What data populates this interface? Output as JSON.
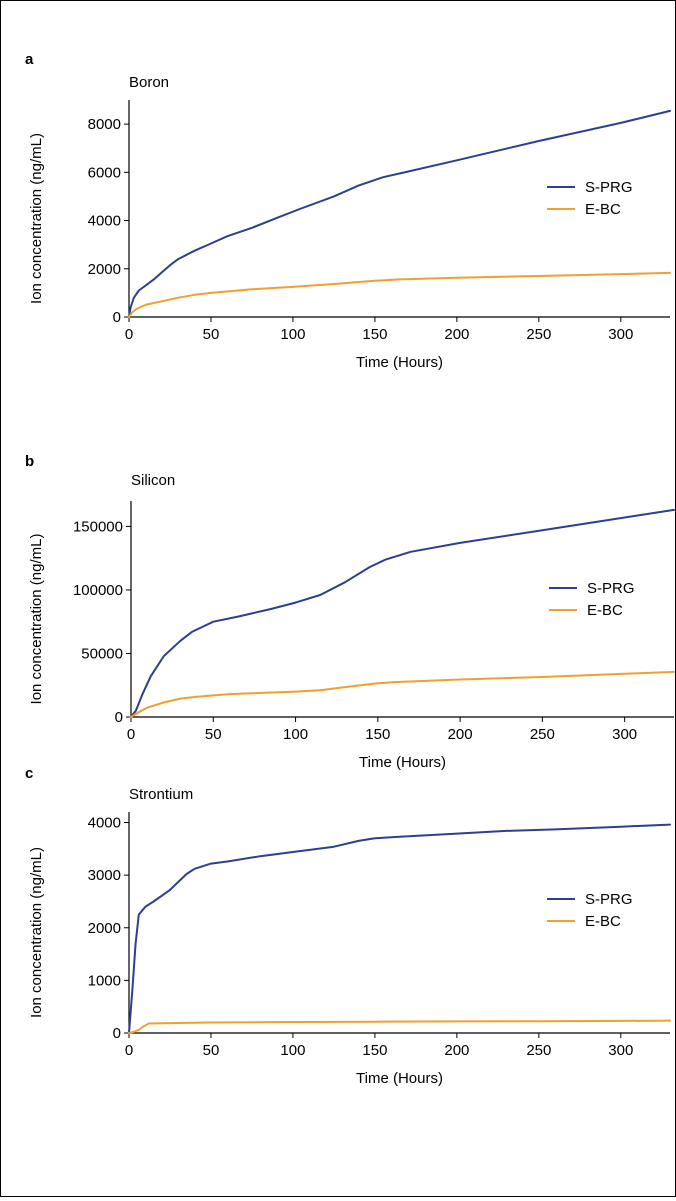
{
  "chart_data": [
    {
      "type": "line",
      "panel": "a",
      "title": "Boron",
      "xlabel": "Time (Hours)",
      "ylabel": "Ion concentration (ng/mL)",
      "xlim": [
        0,
        330
      ],
      "ylim": [
        0,
        9000
      ],
      "xticks": [
        0,
        50,
        100,
        150,
        200,
        250,
        300
      ],
      "yticks": [
        0,
        2000,
        4000,
        6000,
        8000
      ],
      "legend_position": "right",
      "series": [
        {
          "name": "S-PRG",
          "color": "#2e3f8f",
          "x": [
            0,
            1,
            3,
            6,
            10,
            15,
            20,
            25,
            30,
            40,
            50,
            60,
            75,
            90,
            105,
            125,
            140,
            155,
            165,
            200,
            250,
            300,
            330
          ],
          "y": [
            0,
            400,
            800,
            1100,
            1300,
            1550,
            1850,
            2150,
            2400,
            2750,
            3050,
            3350,
            3700,
            4100,
            4500,
            5000,
            5450,
            5800,
            5950,
            6500,
            7300,
            8050,
            8550
          ]
        },
        {
          "name": "E-BC",
          "color": "#f0a030",
          "x": [
            0,
            2,
            5,
            10,
            15,
            20,
            30,
            40,
            50,
            75,
            100,
            125,
            150,
            165,
            200,
            250,
            300,
            330
          ],
          "y": [
            0,
            200,
            350,
            500,
            580,
            650,
            800,
            920,
            1000,
            1150,
            1250,
            1370,
            1500,
            1560,
            1630,
            1700,
            1780,
            1830
          ]
        }
      ]
    },
    {
      "type": "line",
      "panel": "b",
      "title": "Silicon",
      "xlabel": "Time (Hours)",
      "ylabel": "Ion concentration (ng/mL)",
      "xlim": [
        0,
        330
      ],
      "ylim": [
        0,
        170000
      ],
      "xticks": [
        0,
        50,
        100,
        150,
        200,
        250,
        300
      ],
      "yticks": [
        0,
        50000,
        100000,
        150000
      ],
      "legend_position": "right",
      "series": [
        {
          "name": "S-PRG",
          "color": "#2e3f8f",
          "x": [
            0,
            3,
            7,
            12,
            20,
            30,
            37,
            50,
            65,
            85,
            100,
            115,
            130,
            145,
            155,
            170,
            200,
            250,
            300,
            330
          ],
          "y": [
            0,
            5000,
            18000,
            32000,
            48000,
            60000,
            67000,
            75000,
            79000,
            85000,
            90000,
            96000,
            106000,
            118000,
            124000,
            130000,
            137000,
            147000,
            157000,
            163000
          ]
        },
        {
          "name": "E-BC",
          "color": "#f0a030",
          "x": [
            0,
            5,
            10,
            20,
            30,
            40,
            50,
            60,
            80,
            100,
            115,
            130,
            150,
            160,
            200,
            250,
            300,
            330
          ],
          "y": [
            0,
            4000,
            7500,
            11500,
            14500,
            16000,
            17000,
            18000,
            19000,
            20000,
            21000,
            23500,
            26500,
            27500,
            29500,
            31500,
            34000,
            35500
          ]
        }
      ]
    },
    {
      "type": "line",
      "panel": "c",
      "title": "Strontium",
      "xlabel": "Time (Hours)",
      "ylabel": "Ion concentration (ng/mL)",
      "xlim": [
        0,
        330
      ],
      "ylim": [
        0,
        4200
      ],
      "xticks": [
        0,
        50,
        100,
        150,
        200,
        250,
        300
      ],
      "yticks": [
        0,
        1000,
        2000,
        3000,
        4000
      ],
      "legend_position": "right",
      "series": [
        {
          "name": "S-PRG",
          "color": "#2e3f8f",
          "x": [
            0,
            2,
            4,
            6,
            10,
            15,
            25,
            35,
            40,
            50,
            60,
            80,
            100,
            125,
            140,
            150,
            165,
            200,
            230,
            260,
            300,
            330
          ],
          "y": [
            0,
            800,
            1700,
            2250,
            2400,
            2500,
            2720,
            3020,
            3120,
            3220,
            3260,
            3360,
            3440,
            3540,
            3650,
            3700,
            3730,
            3790,
            3840,
            3870,
            3920,
            3960
          ]
        },
        {
          "name": "E-BC",
          "color": "#f0a030",
          "x": [
            0,
            3,
            6,
            9,
            12,
            20,
            50,
            100,
            150,
            200,
            250,
            300,
            330
          ],
          "y": [
            0,
            20,
            60,
            130,
            180,
            185,
            200,
            210,
            215,
            220,
            225,
            230,
            235
          ]
        }
      ]
    }
  ]
}
